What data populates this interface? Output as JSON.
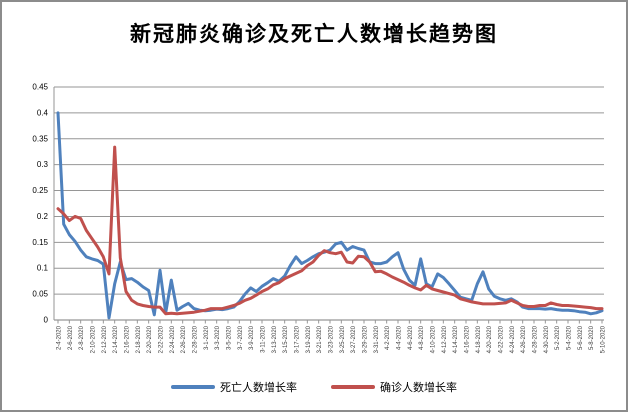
{
  "title": "新冠肺炎确诊及死亡人数增长趋势图",
  "chart_data": {
    "type": "line",
    "title": "新冠肺炎确诊及死亡人数增长趋势图",
    "grid": "horizontal",
    "legend_position": "bottom",
    "ylim": [
      0,
      0.45
    ],
    "ytick_step": 0.05,
    "ytick_labels": [
      "0",
      "0.05",
      "0.1",
      "0.15",
      "0.2",
      "0.25",
      "0.3",
      "0.35",
      "0.4",
      "0.45"
    ],
    "x_tick_every": 2,
    "axis_color": "#969696",
    "x": [
      "2-4-2020",
      "2-5-2020",
      "2-6-2020",
      "2-7-2020",
      "2-8-2020",
      "2-9-2020",
      "2-10-2020",
      "2-11-2020",
      "2-12-2020",
      "2-13-2020",
      "2-14-2020",
      "2-15-2020",
      "2-16-2020",
      "2-17-2020",
      "2-18-2020",
      "2-19-2020",
      "2-20-2020",
      "2-21-2020",
      "2-22-2020",
      "2-23-2020",
      "2-24-2020",
      "2-25-2020",
      "2-26-2020",
      "2-27-2020",
      "2-28-2020",
      "2-29-2020",
      "3-1-2020",
      "3-2-2020",
      "3-3-2020",
      "3-4-2020",
      "3-5-2020",
      "3-6-2020",
      "3-7-2020",
      "3-8-2020",
      "3-9-2020",
      "3-10-2020",
      "3-11-2020",
      "3-12-2020",
      "3-13-2020",
      "3-14-2020",
      "3-15-2020",
      "3-16-2020",
      "3-17-2020",
      "3-18-2020",
      "3-19-2020",
      "3-20-2020",
      "3-21-2020",
      "3-22-2020",
      "3-23-2020",
      "3-24-2020",
      "3-25-2020",
      "3-26-2020",
      "3-27-2020",
      "3-28-2020",
      "3-29-2020",
      "3-30-2020",
      "3-31-2020",
      "4-1-2020",
      "4-2-2020",
      "4-3-2020",
      "4-4-2020",
      "4-5-2020",
      "4-6-2020",
      "4-7-2020",
      "4-8-2020",
      "4-9-2020",
      "4-10-2020",
      "4-11-2020",
      "4-12-2020",
      "4-13-2020",
      "4-14-2020",
      "4-15-2020",
      "4-16-2020",
      "4-17-2020",
      "4-18-2020",
      "4-19-2020",
      "4-20-2020",
      "4-21-2020",
      "4-22-2020",
      "4-23-2020",
      "4-24-2020",
      "4-25-2020",
      "4-26-2020",
      "4-27-2020",
      "4-28-2020",
      "4-29-2020",
      "4-30-2020",
      "5-1-2020",
      "5-2-2020",
      "5-3-2020",
      "5-4-2020",
      "5-5-2020",
      "5-6-2020",
      "5-7-2020",
      "5-8-2020",
      "5-9-2020",
      "5-10-2020"
    ],
    "series": [
      {
        "name": "死亡人数增长率",
        "color": "#4F81BD",
        "values": [
          0.4,
          0.185,
          0.165,
          0.152,
          0.135,
          0.122,
          0.118,
          0.115,
          0.108,
          0.004,
          0.07,
          0.112,
          0.078,
          0.08,
          0.073,
          0.064,
          0.057,
          0.01,
          0.096,
          0.014,
          0.077,
          0.019,
          0.026,
          0.032,
          0.022,
          0.019,
          0.018,
          0.019,
          0.021,
          0.02,
          0.022,
          0.025,
          0.035,
          0.05,
          0.062,
          0.055,
          0.065,
          0.072,
          0.08,
          0.075,
          0.085,
          0.105,
          0.122,
          0.109,
          0.115,
          0.122,
          0.128,
          0.131,
          0.135,
          0.147,
          0.15,
          0.135,
          0.142,
          0.138,
          0.135,
          0.112,
          0.109,
          0.109,
          0.112,
          0.122,
          0.13,
          0.098,
          0.077,
          0.067,
          0.118,
          0.07,
          0.064,
          0.089,
          0.082,
          0.07,
          0.057,
          0.044,
          0.041,
          0.038,
          0.07,
          0.093,
          0.06,
          0.046,
          0.041,
          0.038,
          0.041,
          0.035,
          0.025,
          0.022,
          0.022,
          0.022,
          0.021,
          0.022,
          0.02,
          0.019,
          0.019,
          0.018,
          0.016,
          0.015,
          0.012,
          0.014,
          0.018
        ]
      },
      {
        "name": "确诊人数增长率",
        "color": "#C0504D",
        "values": [
          0.215,
          0.205,
          0.192,
          0.2,
          0.196,
          0.173,
          0.157,
          0.141,
          0.122,
          0.089,
          0.334,
          0.12,
          0.055,
          0.038,
          0.031,
          0.028,
          0.026,
          0.025,
          0.025,
          0.012,
          0.013,
          0.012,
          0.013,
          0.014,
          0.015,
          0.017,
          0.019,
          0.022,
          0.022,
          0.022,
          0.025,
          0.028,
          0.032,
          0.038,
          0.042,
          0.048,
          0.055,
          0.06,
          0.068,
          0.072,
          0.08,
          0.085,
          0.09,
          0.095,
          0.105,
          0.112,
          0.125,
          0.134,
          0.13,
          0.128,
          0.131,
          0.112,
          0.11,
          0.123,
          0.122,
          0.112,
          0.093,
          0.094,
          0.089,
          0.083,
          0.078,
          0.073,
          0.067,
          0.062,
          0.058,
          0.067,
          0.06,
          0.057,
          0.054,
          0.051,
          0.048,
          0.041,
          0.038,
          0.035,
          0.033,
          0.031,
          0.031,
          0.031,
          0.032,
          0.033,
          0.038,
          0.033,
          0.028,
          0.026,
          0.026,
          0.028,
          0.028,
          0.033,
          0.03,
          0.028,
          0.028,
          0.027,
          0.026,
          0.025,
          0.024,
          0.022,
          0.022
        ]
      }
    ]
  }
}
